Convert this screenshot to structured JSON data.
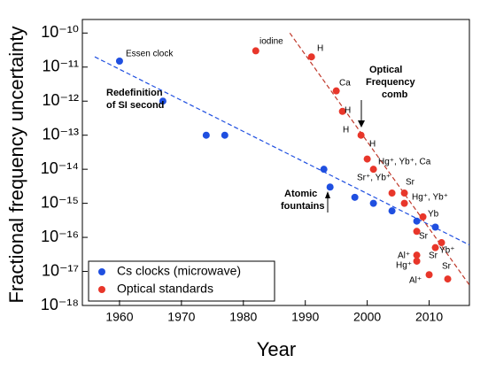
{
  "chart_data": {
    "type": "scatter",
    "x_label": "Year",
    "y_label": "Fractional frequency uncertainty",
    "xlim": [
      1954,
      2016.5
    ],
    "xticks": [
      1960,
      1970,
      1980,
      1990,
      2000,
      2010
    ],
    "ylim": [
      1e-18,
      2.5e-10
    ],
    "log_y": true,
    "yticks": [
      {
        "value": 1e-10,
        "label": "10⁻¹⁰"
      },
      {
        "value": 1e-11,
        "label": "10⁻¹¹"
      },
      {
        "value": 1e-12,
        "label": "10⁻¹²"
      },
      {
        "value": 1e-13,
        "label": "10⁻¹³"
      },
      {
        "value": 1e-14,
        "label": "10⁻¹⁴"
      },
      {
        "value": 1e-15,
        "label": "10⁻¹⁵"
      },
      {
        "value": 1e-16,
        "label": "10⁻¹⁶"
      },
      {
        "value": 1e-17,
        "label": "10⁻¹⁷"
      },
      {
        "value": 1e-18,
        "label": "10⁻¹⁸"
      }
    ],
    "legend": "lower left",
    "series": [
      {
        "name": "Cs clocks (microwave)",
        "color": "#1f4fe0",
        "x": [
          1960,
          1967,
          1974,
          1977,
          1993,
          1994,
          1998,
          2001,
          2004,
          2008,
          2011
        ],
        "values": [
          1.5e-11,
          1e-12,
          1e-13,
          1e-13,
          1e-14,
          3e-15,
          1.5e-15,
          1e-15,
          6e-16,
          3e-16,
          2e-16
        ]
      },
      {
        "name": "Optical standards",
        "color": "#e8362a",
        "x": [
          1982,
          1991,
          1995,
          1996,
          1999,
          2000,
          2001,
          2004,
          2006,
          2006,
          2009,
          2008,
          2012,
          2011,
          2008,
          2008,
          2010,
          2013
        ],
        "values": [
          3e-11,
          2e-11,
          2e-12,
          5e-13,
          1e-13,
          2e-14,
          1e-14,
          2e-15,
          2e-15,
          1e-15,
          4e-16,
          1.5e-16,
          7e-17,
          5e-17,
          3e-17,
          2e-17,
          8e-18,
          6e-18
        ]
      }
    ],
    "trend_lines": [
      {
        "color": "#1f4fe0",
        "x": [
          1956,
          2016.5
        ],
        "values": [
          2e-11,
          6e-17
        ]
      },
      {
        "color": "#c0392b",
        "x": [
          1987.5,
          2016.5
        ],
        "values": [
          1e-10,
          4e-18
        ]
      }
    ],
    "annotations": [
      "Essen clock",
      "iodine",
      "H",
      "Ca",
      "H",
      "H",
      "H",
      "Optical",
      "Frequency",
      "comb",
      "Redefinition",
      "of SI second",
      "Atomic",
      "fountains",
      "Hg⁺, Yb⁺, Ca",
      "Sr⁺, Yb⁺",
      "Sr",
      "Hg⁺, Yb⁺",
      "Yb",
      "Sr",
      "Yb⁺",
      "Al⁺",
      "Sr",
      "Hg⁺",
      "Al⁺",
      "Sr"
    ]
  }
}
